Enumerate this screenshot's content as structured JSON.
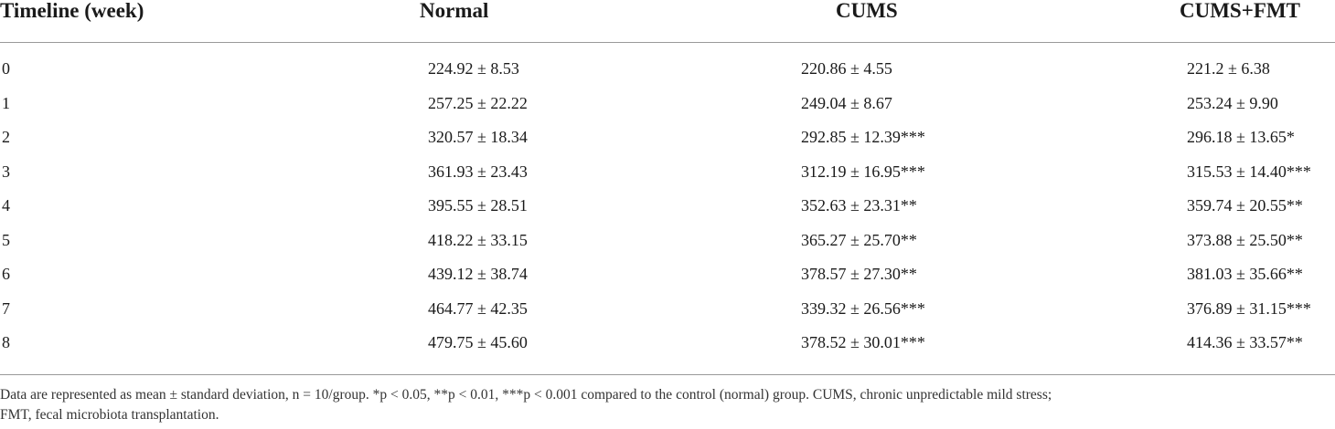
{
  "table": {
    "headers": [
      "Timeline (week)",
      "Normal",
      "CUMS",
      "CUMS+FMT"
    ],
    "rows": [
      [
        "0",
        "224.92 ± 8.53",
        "220.86 ± 4.55",
        "221.2 ± 6.38"
      ],
      [
        "1",
        "257.25 ± 22.22",
        "249.04 ± 8.67",
        "253.24 ± 9.90"
      ],
      [
        "2",
        "320.57 ± 18.34",
        "292.85 ± 12.39***",
        "296.18 ± 13.65*"
      ],
      [
        "3",
        "361.93 ± 23.43",
        "312.19 ± 16.95***",
        "315.53 ± 14.40***"
      ],
      [
        "4",
        "395.55 ± 28.51",
        "352.63 ± 23.31**",
        "359.74 ± 20.55**"
      ],
      [
        "5",
        "418.22 ± 33.15",
        "365.27 ± 25.70**",
        "373.88 ± 25.50**"
      ],
      [
        "6",
        "439.12 ± 38.74",
        "378.57 ± 27.30**",
        "381.03 ± 35.66**"
      ],
      [
        "7",
        "464.77 ± 42.35",
        "339.32 ± 26.56***",
        "376.89 ± 31.15***"
      ],
      [
        "8",
        "479.75 ± 45.60",
        "378.52 ± 30.01***",
        "414.36 ± 33.57**"
      ]
    ]
  },
  "footnote": {
    "line1": "Data are represented as mean ± standard deviation, n = 10/group. *p < 0.05, **p < 0.01, ***p < 0.001 compared to the control (normal) group. CUMS, chronic unpredictable mild stress;",
    "line2": "FMT, fecal microbiota transplantation."
  }
}
